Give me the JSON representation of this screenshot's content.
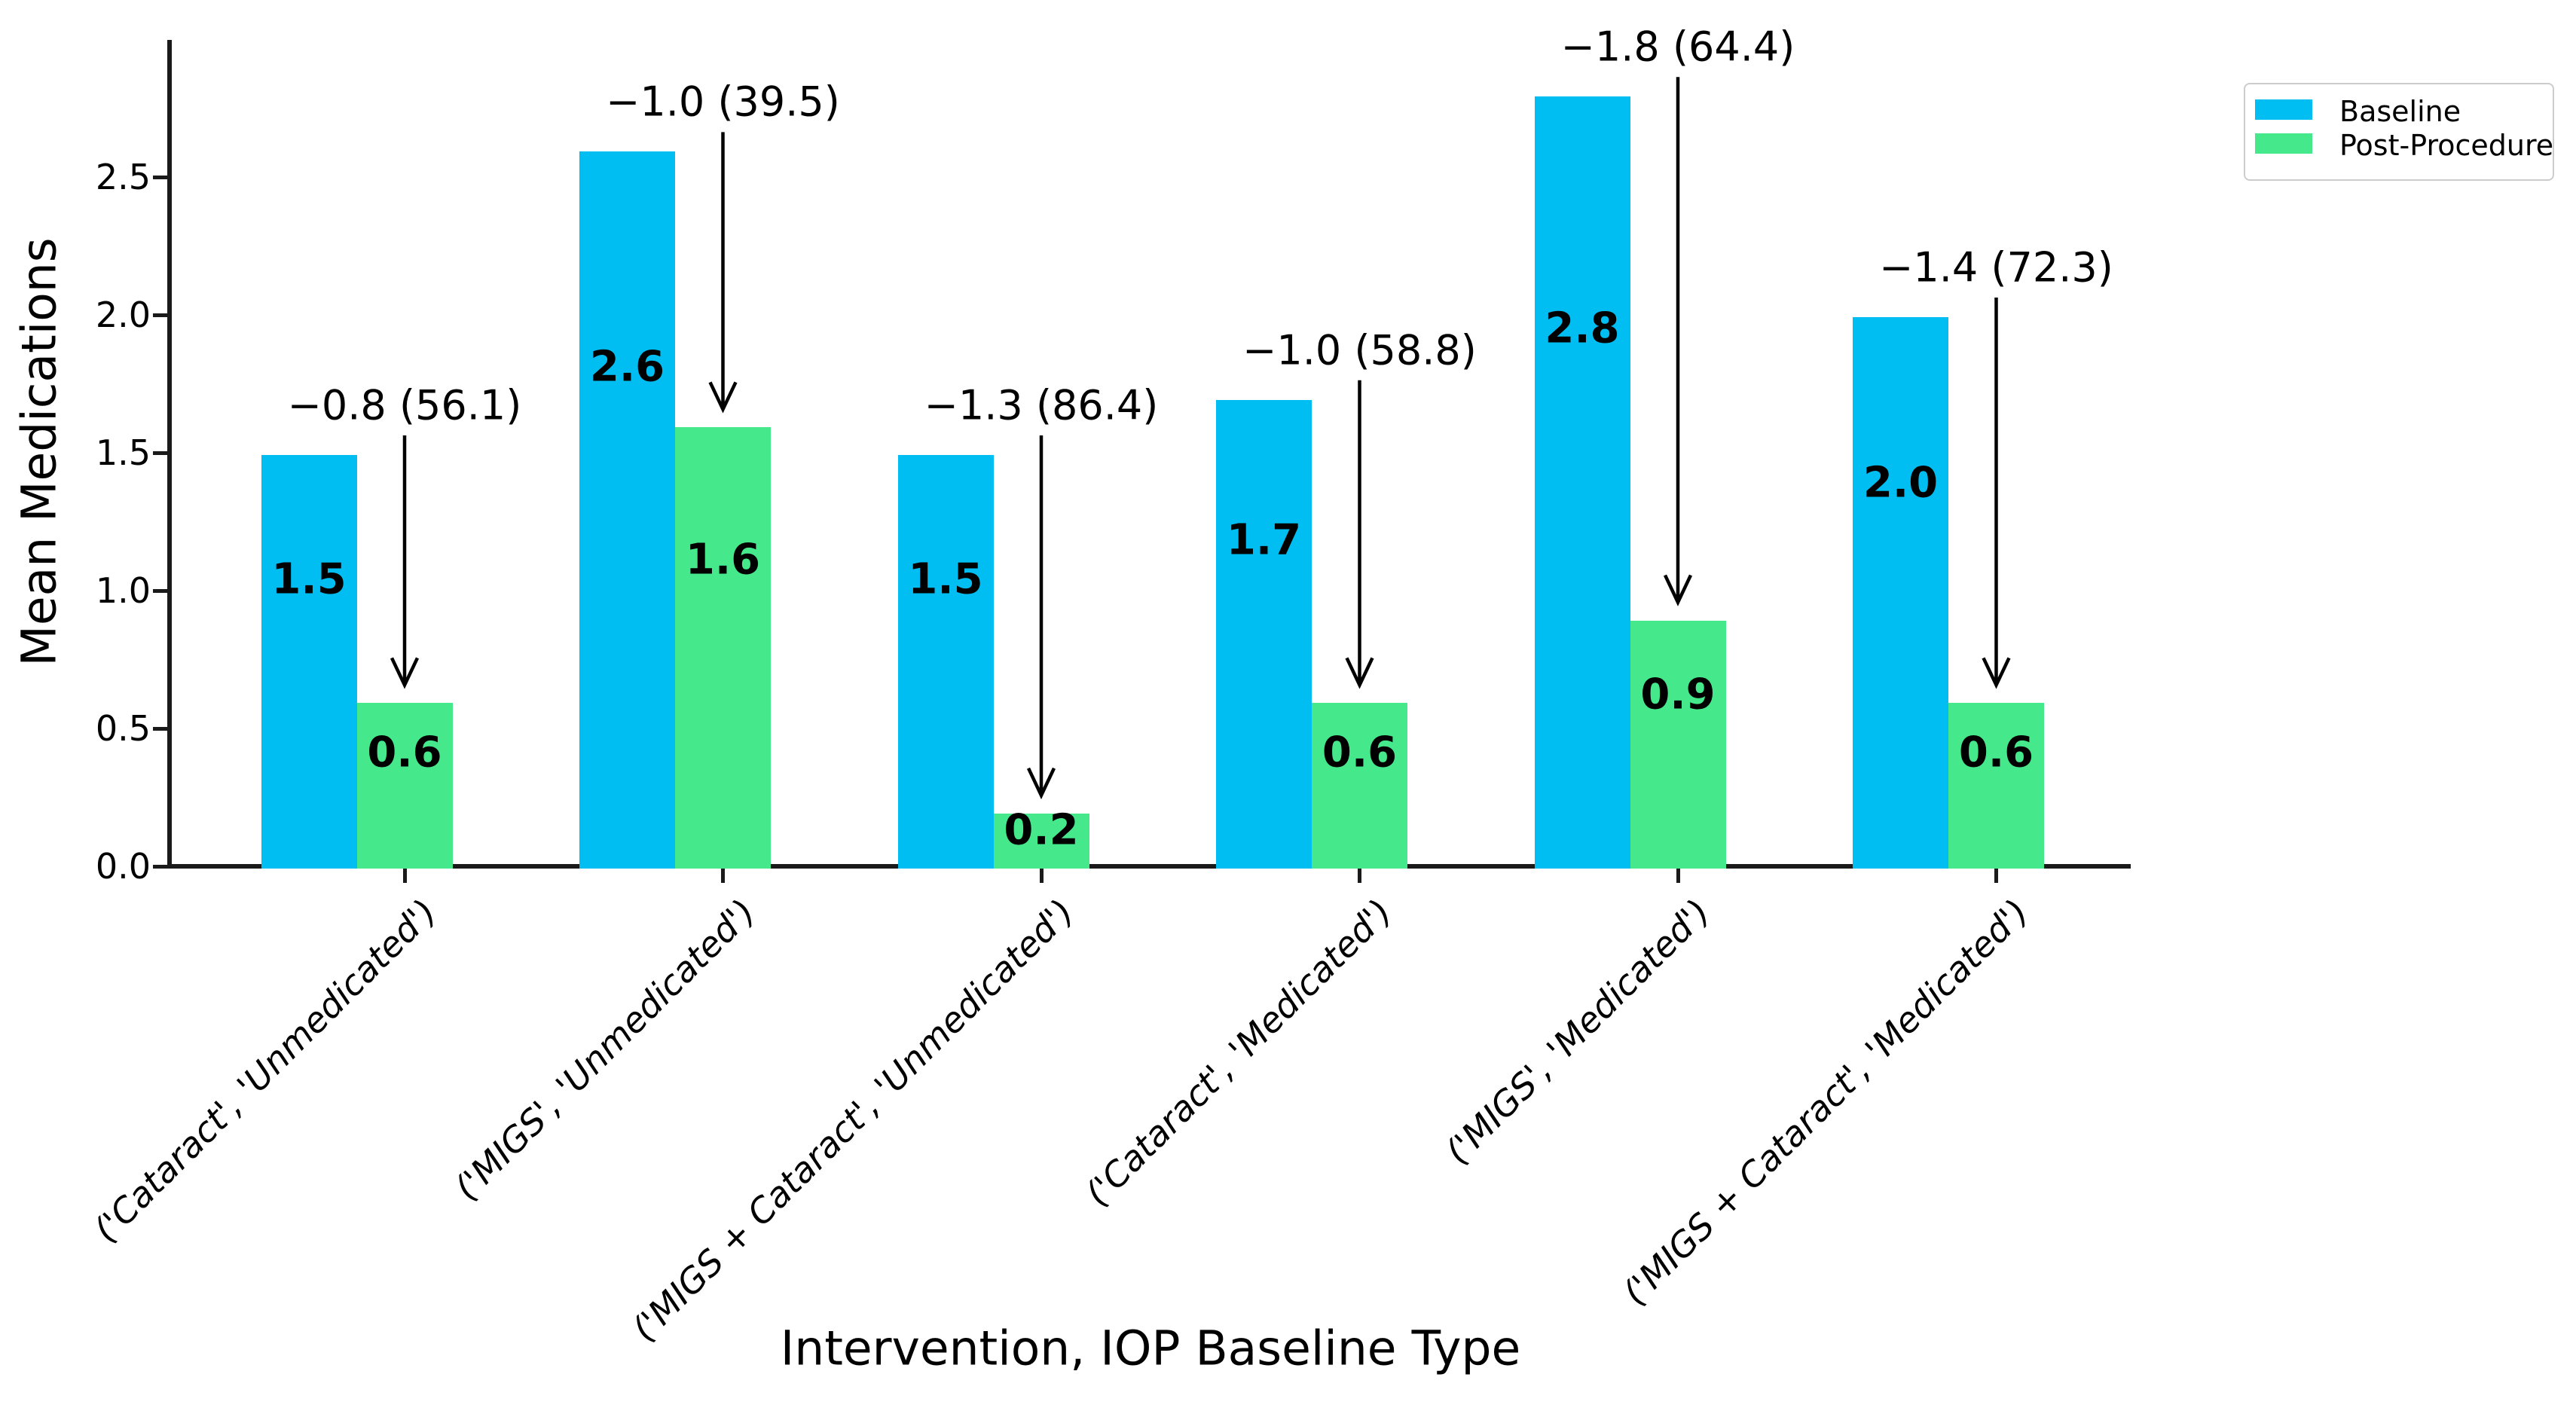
{
  "figure": {
    "background": "#ffffff"
  },
  "legend": {
    "items": [
      {
        "label": "Baseline",
        "color": "#00bef2"
      },
      {
        "label": "Post-Procedure",
        "color": "#45e98c"
      }
    ]
  },
  "chart_data": {
    "type": "bar",
    "title": "",
    "xlabel": "Intervention, IOP Baseline Type",
    "ylabel": "Mean Medications",
    "categories": [
      "('Cataract', 'Unmedicated')",
      "('MIGS', 'Unmedicated')",
      "('MIGS + Cataract', 'Unmedicated')",
      "('Cataract', 'Medicated')",
      "('MIGS', 'Medicated')",
      "('MIGS + Cataract', 'Medicated')"
    ],
    "series": [
      {
        "name": "Baseline",
        "color": "#00bef2",
        "values": [
          1.5,
          2.6,
          1.5,
          1.7,
          2.8,
          2.0
        ],
        "value_labels": [
          "1.5",
          "2.6",
          "1.5",
          "1.7",
          "2.8",
          "2.0"
        ]
      },
      {
        "name": "Post-Procedure",
        "color": "#45e98c",
        "values": [
          0.6,
          1.6,
          0.2,
          0.6,
          0.9,
          0.6
        ],
        "value_labels": [
          "0.6",
          "1.6",
          "0.2",
          "0.6",
          "0.9",
          "0.6"
        ]
      }
    ],
    "annotations": [
      "−0.8 (56.1)",
      "−1.0 (39.5)",
      "−1.3 (86.4)",
      "−1.0 (58.8)",
      "−1.8 (64.4)",
      "−1.4 (72.3)"
    ],
    "y_ticks": [
      "0.0",
      "0.5",
      "1.0",
      "1.5",
      "2.0",
      "2.5"
    ],
    "y_tick_values": [
      0.0,
      0.5,
      1.0,
      1.5,
      2.0,
      2.5
    ],
    "ylim": [
      0,
      3.0
    ],
    "grid": false,
    "legend_position": "upper right",
    "annotation_arrow_color": "#000000",
    "text_color": "#000000"
  }
}
